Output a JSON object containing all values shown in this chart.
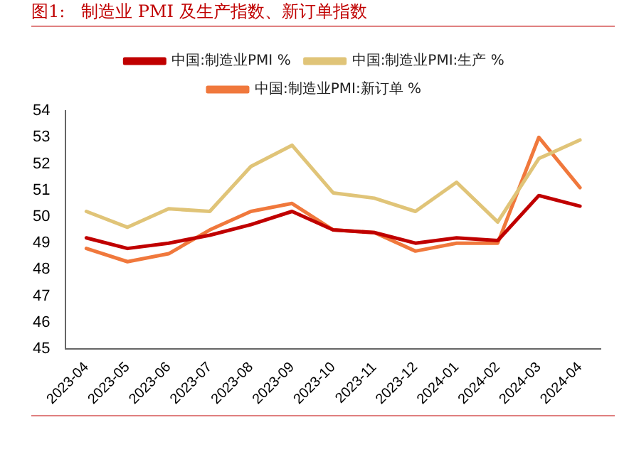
{
  "chart_data": {
    "type": "line",
    "title": "图1:   制造业 PMI 及生产指数、新订单指数",
    "categories": [
      "2023-04",
      "2023-05",
      "2023-06",
      "2023-07",
      "2023-08",
      "2023-09",
      "2023-10",
      "2023-11",
      "2023-12",
      "2024-01",
      "2024-02",
      "2024-03",
      "2024-04"
    ],
    "series": [
      {
        "name": "中国:制造业PMI %",
        "color": "#c00000",
        "values": [
          49.2,
          48.8,
          49.0,
          49.3,
          49.7,
          50.2,
          49.5,
          49.4,
          49.0,
          49.2,
          49.1,
          50.8,
          50.4
        ]
      },
      {
        "name": "中国:制造业PMI:生产 %",
        "color": "#e0c478",
        "values": [
          50.2,
          49.6,
          50.3,
          50.2,
          51.9,
          52.7,
          50.9,
          50.7,
          50.2,
          51.3,
          49.8,
          52.2,
          52.9
        ]
      },
      {
        "name": "中国:制造业PMI:新订单 %",
        "color": "#f0783c",
        "values": [
          48.8,
          48.3,
          48.6,
          49.5,
          50.2,
          50.5,
          49.5,
          49.4,
          48.7,
          49.0,
          49.0,
          53.0,
          51.1
        ]
      }
    ],
    "ylim": [
      45,
      54
    ],
    "yticks": [
      45,
      46,
      47,
      48,
      49,
      50,
      51,
      52,
      53,
      54
    ],
    "grid": false,
    "legend": "top",
    "marker": "none",
    "line_style": "solid"
  }
}
